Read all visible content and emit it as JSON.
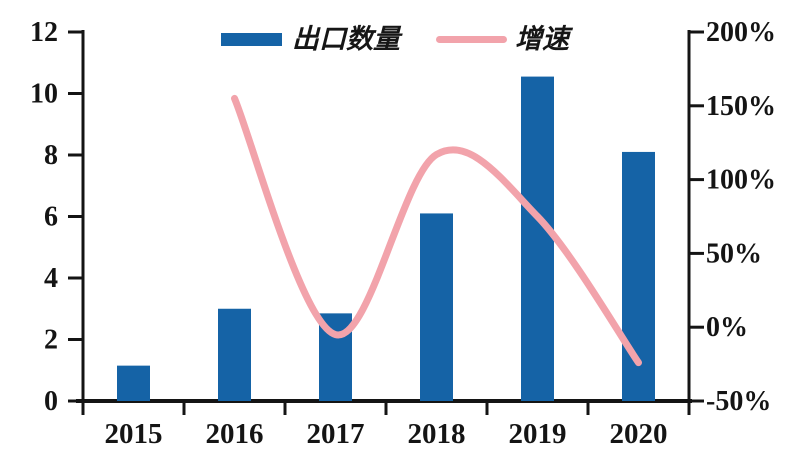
{
  "chart_data": {
    "type": [
      "bar",
      "line"
    ],
    "categories": [
      "2015",
      "2016",
      "2017",
      "2018",
      "2019",
      "2020"
    ],
    "series": [
      {
        "name": "出口数量",
        "type": "bar",
        "axis": "left",
        "color": "#1563A6",
        "values": [
          1.15,
          3.0,
          2.85,
          6.1,
          10.55,
          8.1
        ]
      },
      {
        "name": "增速",
        "type": "line",
        "axis": "right",
        "color": "#F2A3AB",
        "value_unit": "%",
        "values": [
          null,
          155,
          -5,
          117,
          75,
          -24
        ]
      }
    ],
    "left_axis": {
      "min": 0,
      "max": 12,
      "tick_values": [
        0,
        2,
        4,
        6,
        8,
        10,
        12
      ],
      "tick_labels": [
        "0",
        "2",
        "4",
        "6",
        "8",
        "10",
        "12"
      ]
    },
    "right_axis": {
      "min": -50,
      "max": 200,
      "tick_values": [
        -50,
        0,
        50,
        100,
        150,
        200
      ],
      "tick_labels": [
        "-50%",
        "0%",
        "50%",
        "100%",
        "150%",
        "200%"
      ]
    },
    "legend": {
      "position": "top-center",
      "items": [
        {
          "label": "出口数量",
          "marker": "bar",
          "color": "#1563A6"
        },
        {
          "label": "增速",
          "marker": "line",
          "color": "#F2A3AB"
        }
      ]
    },
    "grid": false,
    "axis_color": "#141414",
    "background": "#FFFFFF"
  }
}
